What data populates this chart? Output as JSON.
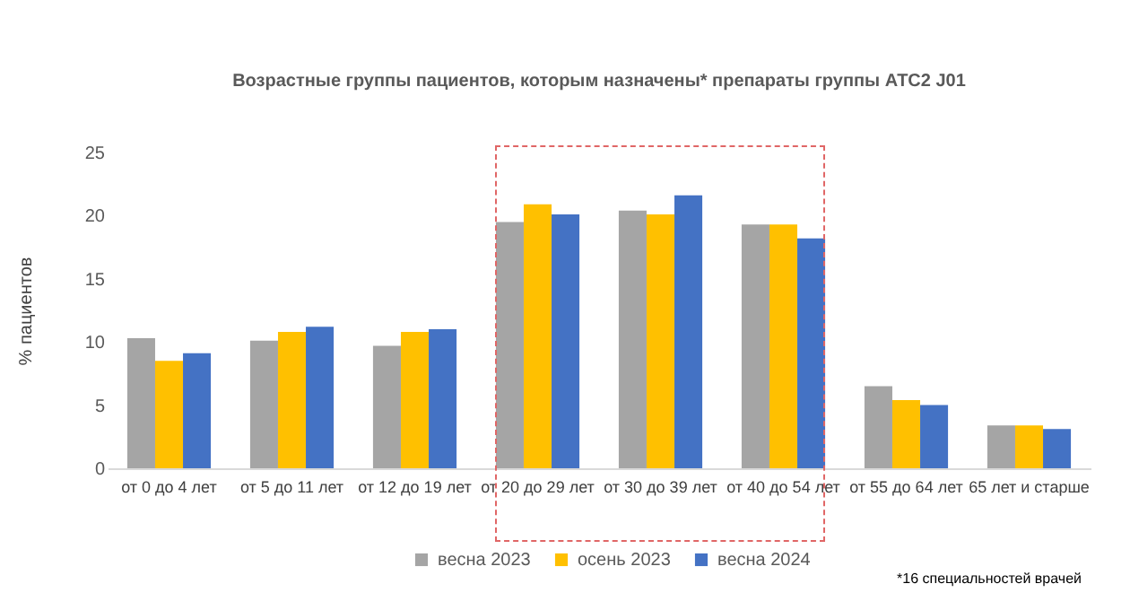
{
  "chart_data": {
    "type": "bar",
    "title": "Возрастные группы пациентов, которым назначены* препараты группы АТС2 J01",
    "ylabel": "% пациентов",
    "categories": [
      "от 0 до 4 лет",
      "от 5 до 11 лет",
      "от 12 до 19 лет",
      "от 20 до 29 лет",
      "от 30 до 39 лет",
      "от 40 до 54 лет",
      "от 55 до 64 лет",
      "65 лет и старше"
    ],
    "series": [
      {
        "name": "весна 2023",
        "color": "#a5a5a5",
        "values": [
          10.3,
          10.1,
          9.7,
          19.5,
          20.4,
          19.3,
          6.5,
          3.4
        ]
      },
      {
        "name": "осень 2023",
        "color": "#ffc000",
        "values": [
          8.5,
          10.8,
          10.8,
          20.9,
          20.1,
          19.3,
          5.4,
          3.4
        ]
      },
      {
        "name": "весна 2024",
        "color": "#4472c4",
        "values": [
          9.1,
          11.2,
          11.0,
          20.1,
          21.6,
          18.2,
          5.0,
          3.1
        ]
      }
    ],
    "ylim": [
      0,
      25
    ],
    "yticks": [
      0,
      5,
      10,
      15,
      20,
      25
    ],
    "grid": false,
    "legend": "bottom",
    "annotations": [
      "*16 специальностей врачей"
    ]
  }
}
